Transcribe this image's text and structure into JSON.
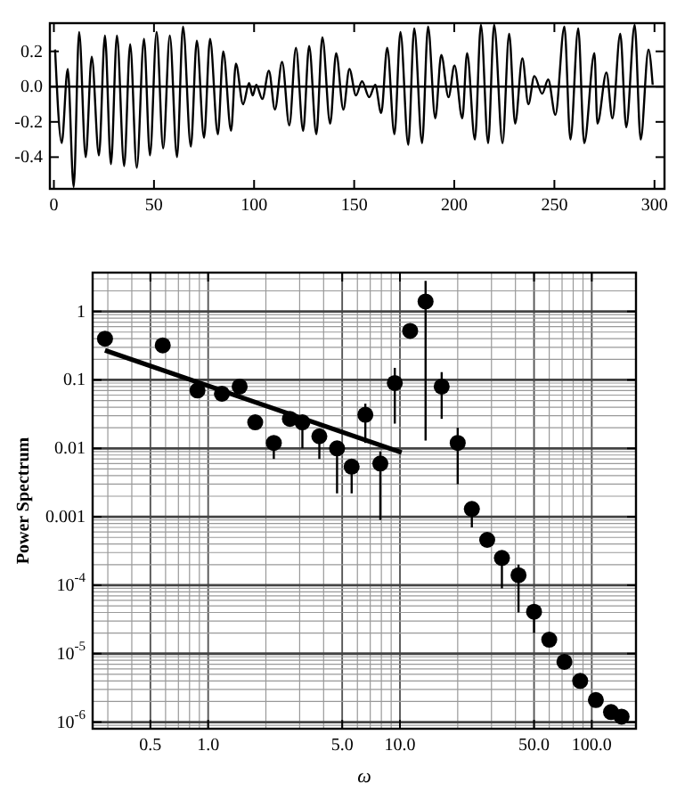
{
  "chart_data": [
    {
      "type": "line",
      "xlim": [
        -2,
        305
      ],
      "ylim": [
        -0.58,
        0.36
      ],
      "xticks": [
        0,
        50,
        100,
        150,
        200,
        250,
        300
      ],
      "yticks": [
        {
          "value": 0.2,
          "label": "0.2"
        },
        {
          "value": 0,
          "label": "0.0"
        },
        {
          "value": -0.2,
          "label": "-0.2"
        },
        {
          "value": -0.4,
          "label": "-0.4"
        }
      ],
      "grid": false,
      "line_style": "solid",
      "ref_lines": [
        {
          "axis": "y",
          "value": 0,
          "label": null,
          "color": "#000000"
        }
      ],
      "series": [
        {
          "color": "#000000",
          "x": [
            0.6,
            3.9,
            6.9,
            9.9,
            12.6,
            15.9,
            18.9,
            22.5,
            25.5,
            28.5,
            31.5,
            35.1,
            38.1,
            41.4,
            45,
            48,
            51.3,
            54.6,
            57.9,
            61.5,
            64.5,
            68.4,
            71.4,
            75,
            78,
            81.9,
            84.6,
            88.5,
            90.9,
            94.5,
            97.5,
            99.3,
            101.1,
            104.1,
            107.4,
            110.4,
            114,
            117.6,
            120.9,
            124.5,
            127.5,
            131.1,
            134.1,
            138,
            141,
            144.6,
            147.6,
            150.9,
            153.9,
            157.5,
            160.5,
            163.5,
            166.5,
            170.1,
            173.1,
            177,
            180,
            183.9,
            186.9,
            190.5,
            193.5,
            197.1,
            200.1,
            204,
            206.4,
            210.3,
            213.3,
            216.9,
            219.9,
            224.1,
            227.4,
            230.4,
            234,
            237,
            240,
            243.9,
            246.9,
            250.5,
            255,
            258,
            261.9,
            264.9,
            270,
            271.5,
            276,
            279,
            282.9,
            285.9,
            290.1,
            293.1,
            297,
            299.1
          ],
          "values": [
            0.21,
            -0.32,
            0.1,
            -0.57,
            0.31,
            -0.4,
            0.17,
            -0.39,
            0.29,
            -0.44,
            0.29,
            -0.45,
            0.24,
            -0.46,
            0.27,
            -0.39,
            0.31,
            -0.35,
            0.29,
            -0.4,
            0.34,
            -0.34,
            0.26,
            -0.29,
            0.27,
            -0.27,
            0.2,
            -0.25,
            0.13,
            -0.1,
            0.02,
            -0.05,
            0.01,
            -0.07,
            0.09,
            -0.13,
            0.14,
            -0.22,
            0.22,
            -0.25,
            0.23,
            -0.27,
            0.28,
            -0.21,
            0.19,
            -0.13,
            0.1,
            -0.05,
            0.03,
            -0.06,
            0.01,
            -0.15,
            0.22,
            -0.27,
            0.31,
            -0.33,
            0.33,
            -0.32,
            0.34,
            -0.18,
            0.18,
            -0.06,
            0.12,
            -0.18,
            0.19,
            -0.3,
            0.35,
            -0.32,
            0.35,
            -0.32,
            0.3,
            -0.21,
            0.16,
            -0.1,
            0.06,
            -0.04,
            0.04,
            -0.16,
            0.34,
            -0.3,
            0.33,
            -0.32,
            0.19,
            -0.21,
            0.08,
            -0.18,
            0.3,
            -0.23,
            0.35,
            -0.3,
            0.21,
            0.01
          ]
        }
      ]
    },
    {
      "type": "scatter",
      "log": "xy",
      "xlim": [
        0.25,
        170
      ],
      "ylim": [
        8e-07,
        3.7
      ],
      "xticks": [
        0.5,
        {
          "value": 1,
          "label": "1.0"
        },
        {
          "value": 5,
          "label": "5.0"
        },
        {
          "value": 10,
          "label": "10.0"
        },
        {
          "value": 50,
          "label": "50.0"
        },
        {
          "value": 100,
          "label": "100.0"
        }
      ],
      "yticks": [
        1,
        0.1,
        0.01,
        0.001,
        {
          "value": 0.0001,
          "label": "10$^{-4}$"
        },
        {
          "value": 1e-05,
          "label": "10$^{-5}$"
        },
        {
          "value": 1e-06,
          "label": "10$^{-6}$"
        }
      ],
      "grid": true,
      "xlabel": "ω",
      "ylabel": "Power Spectrum",
      "series": [
        {
          "type": "scatter",
          "marker": "circle",
          "color": "#000000",
          "x": [
            0.29,
            0.58,
            0.88,
            1.18,
            1.46,
            1.76,
            2.2,
            2.67,
            3.1,
            3.8,
            4.7,
            5.6,
            6.6,
            7.9,
            9.4,
            11.3,
            13.6,
            16.5,
            20,
            23.7,
            28.5,
            34,
            41.5,
            50,
            60,
            72,
            87,
            105,
            126,
            143
          ],
          "values": [
            0.4,
            0.32,
            0.07,
            0.063,
            0.08,
            0.024,
            0.012,
            0.027,
            0.024,
            0.015,
            0.01,
            0.0054,
            0.031,
            0.006,
            0.09,
            0.52,
            1.4,
            0.08,
            0.012,
            0.0013,
            0.00046,
            0.00025,
            0.00014,
            4.1e-05,
            1.6e-05,
            7.6e-06,
            4e-06,
            2.1e-06,
            1.4e-06,
            1.2e-06
          ],
          "errors": [
            null,
            null,
            null,
            null,
            null,
            null,
            [
              0.007,
              0.014
            ],
            null,
            [
              0.01,
              0.03
            ],
            [
              0.007,
              0.018
            ],
            [
              0.0022,
              0.012
            ],
            [
              0.0022,
              0.0065
            ],
            [
              0.012,
              0.045
            ],
            [
              0.0009,
              0.009
            ],
            [
              0.023,
              0.15
            ],
            null,
            [
              0.013,
              2.8
            ],
            [
              0.027,
              0.13
            ],
            [
              0.003,
              0.02
            ],
            [
              0.0007,
              0.0015
            ],
            null,
            [
              9e-05,
              0.0003
            ],
            [
              4e-05,
              0.0002
            ],
            [
              2e-05,
              5e-05
            ],
            null,
            null,
            null,
            null,
            null,
            null
          ]
        },
        {
          "type": "line",
          "marker": "none",
          "color": "#000000",
          "x": [
            0.29,
            10.2
          ],
          "values": [
            0.27,
            0.0087
          ]
        }
      ]
    }
  ]
}
